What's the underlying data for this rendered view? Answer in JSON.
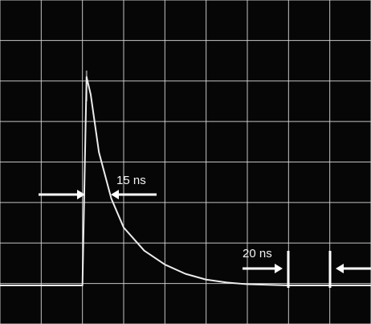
{
  "colors": {
    "background": "#060606",
    "grid": "#d8d8d8",
    "trace": "#ececec",
    "annotation": "#ffffff"
  },
  "chart_data": {
    "type": "line",
    "title": "",
    "xlabel": "",
    "ylabel": "",
    "grid": true,
    "series": [
      {
        "x": [
          0,
          1,
          2,
          2.1,
          2.2,
          2.4,
          2.7,
          3.0,
          3.5,
          4.0,
          4.5,
          5.0,
          5.5,
          6.0,
          7.0,
          8.0,
          9.0
        ],
        "y": [
          0,
          0,
          0,
          3.6,
          3.3,
          2.3,
          1.5,
          1.0,
          0.6,
          0.36,
          0.2,
          0.1,
          0.05,
          0.02,
          0,
          0,
          0
        ]
      }
    ],
    "annotations": [
      {
        "label": "15 ns"
      },
      {
        "label": "20 ns"
      }
    ]
  }
}
